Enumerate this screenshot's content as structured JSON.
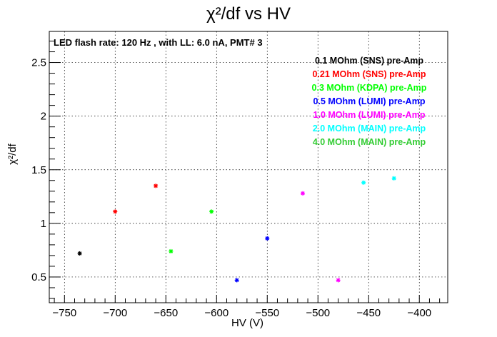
{
  "chart_data": {
    "type": "scatter",
    "title": "χ²/df vs HV",
    "xlabel": "HV (V)",
    "ylabel": "χ²/df",
    "xlim": [
      -765,
      -372
    ],
    "ylim": [
      0.26,
      2.79
    ],
    "x_ticks": [
      -750,
      -700,
      -650,
      -600,
      -550,
      -500,
      -450,
      -400
    ],
    "y_ticks": [
      0.5,
      1,
      1.5,
      2,
      2.5
    ],
    "x_tick_labels": [
      "−750",
      "−700",
      "−650",
      "−600",
      "−550",
      "−500",
      "−450",
      "−400"
    ],
    "y_tick_labels": [
      "0.5",
      "1",
      "1.5",
      "2",
      "2.5"
    ],
    "grid": true,
    "legend_placement": "top-right",
    "annotation": "LED flash rate: 120 Hz , with LL: 6.0 nA, PMT# 3",
    "series": [
      {
        "name": "0.1 MOhm (SNS) pre-Amp",
        "color": "#000000",
        "points": [
          [
            -735,
            0.72
          ]
        ]
      },
      {
        "name": "0.21 MOhm (SNS) pre-Amp",
        "color": "#ff0000",
        "points": [
          [
            -700,
            1.11
          ],
          [
            -660,
            1.35
          ]
        ]
      },
      {
        "name": "0.3 MOhm (KDPA) pre-Amp",
        "color": "#00ff00",
        "points": [
          [
            -645,
            0.74
          ],
          [
            -605,
            1.11
          ]
        ]
      },
      {
        "name": "0.5 MOhm (LUMI) pre-Amp",
        "color": "#0000ff",
        "points": [
          [
            -580,
            0.47
          ],
          [
            -550,
            0.86
          ]
        ]
      },
      {
        "name": "1.0 MOhm (LUMI) pre-Amp",
        "color": "#ff00ff",
        "points": [
          [
            -515,
            1.28
          ],
          [
            -480,
            0.47
          ]
        ]
      },
      {
        "name": "2.0 MOhm (MAIN) pre-Amp",
        "color": "#00ffff",
        "points": [
          [
            -455,
            1.38
          ],
          [
            -425,
            1.42
          ]
        ]
      },
      {
        "name": "4.0 MOhm (MAIN) pre-Amp",
        "color": "#33cc33",
        "points": []
      }
    ]
  }
}
